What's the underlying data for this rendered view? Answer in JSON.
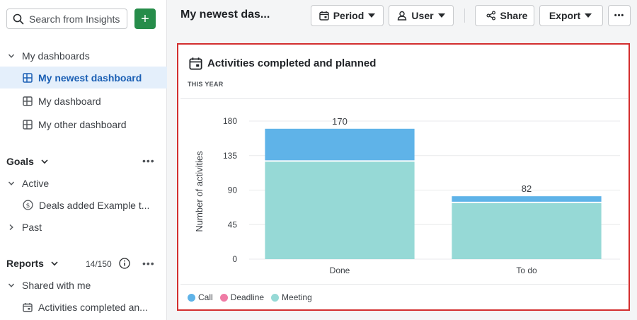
{
  "sidebar": {
    "search_placeholder": "Search from Insights",
    "add_label": "+",
    "dashboards_section": "My dashboards",
    "dashboards": [
      {
        "label": "My newest dashboard"
      },
      {
        "label": "My dashboard"
      },
      {
        "label": "My other dashboard"
      }
    ],
    "goals_section": "Goals",
    "goals_active": "Active",
    "goals_item": "Deals added Example t...",
    "goals_past": "Past",
    "reports_section": "Reports",
    "reports_count": "14/150",
    "shared_section": "Shared with me",
    "shared_item": "Activities completed an..."
  },
  "header": {
    "title": "My newest das...",
    "period_label": "Period",
    "user_label": "User",
    "share_label": "Share",
    "export_label": "Export"
  },
  "card": {
    "title": "Activities completed and planned",
    "subtitle": "THIS YEAR"
  },
  "colors": {
    "call": "#5fb3e8",
    "deadline": "#ef7ba5",
    "meeting": "#96d9d6",
    "accent": "#268c4a",
    "highlight": "#d32f2f"
  },
  "chart_data": {
    "type": "bar",
    "stacked": true,
    "categories": [
      "Done",
      "To do"
    ],
    "series": [
      {
        "name": "Meeting",
        "values": [
          127,
          73
        ]
      },
      {
        "name": "Call",
        "values": [
          43,
          9
        ]
      },
      {
        "name": "Deadline",
        "values": [
          0,
          0
        ]
      }
    ],
    "totals": [
      "170",
      "82"
    ],
    "ylabel": "Number of activities",
    "yticks": [
      0,
      45,
      90,
      135,
      180
    ],
    "ylim": [
      0,
      180
    ],
    "grid": true,
    "legend_position": "bottom-left",
    "legend": [
      "Call",
      "Deadline",
      "Meeting"
    ]
  }
}
